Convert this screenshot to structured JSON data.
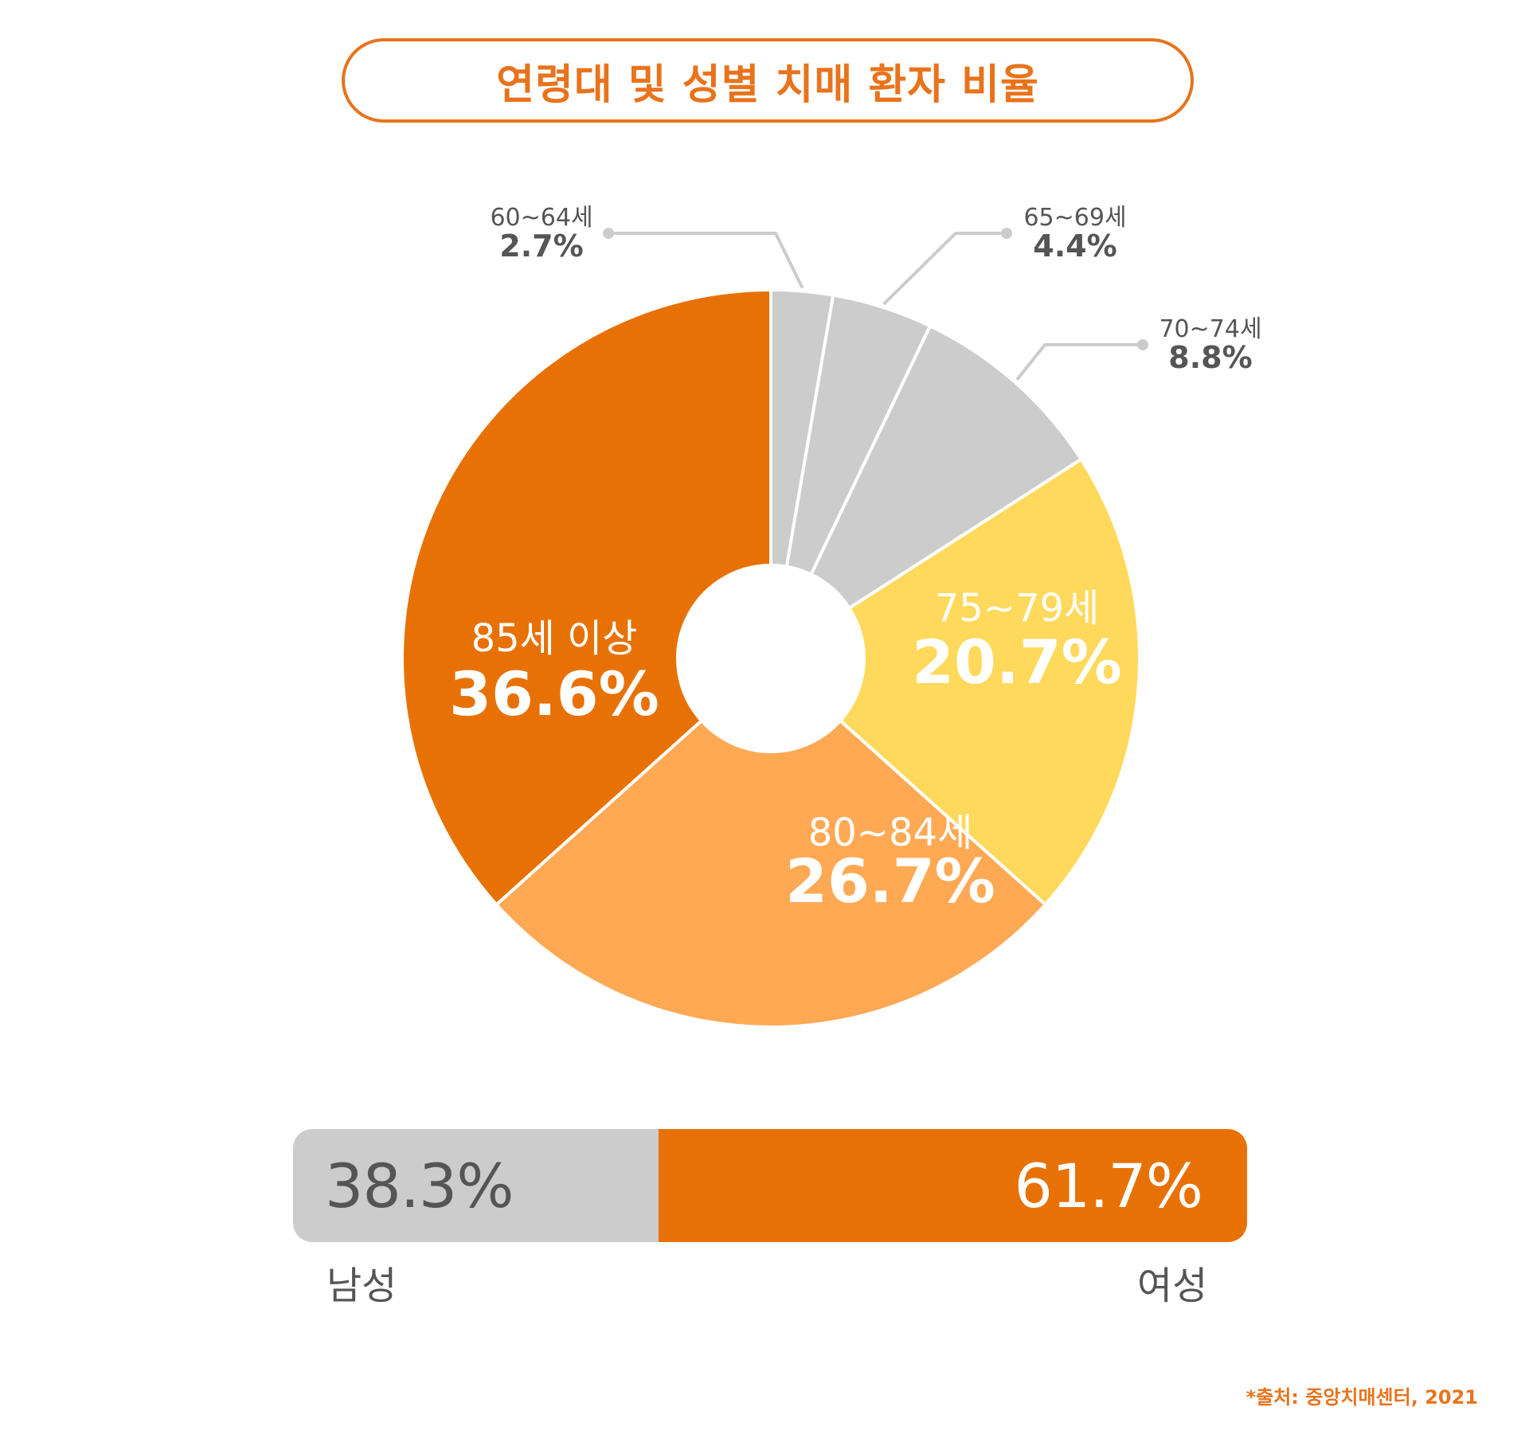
{
  "chart_data": {
    "type": "pie",
    "title": "연령대 및 성별 치매 환자 비율",
    "categories": [
      "60~64세",
      "65~69세",
      "70~74세",
      "75~79세",
      "80~84세",
      "85세 이상"
    ],
    "values": [
      2.7,
      4.4,
      8.8,
      20.7,
      26.7,
      36.6
    ],
    "value_labels": [
      "2.7%",
      "4.4%",
      "8.8%",
      "20.7%",
      "26.7%",
      "36.6%"
    ],
    "colors": [
      "#CCCCCC",
      "#CCCCCC",
      "#CCCCCC",
      "#FFD95C",
      "#FFA955",
      "#E87106"
    ],
    "inner_hole": true,
    "gender": {
      "male": {
        "label": "남성",
        "value": 38.3,
        "value_label": "38.3%",
        "color": "#CCCCCC"
      },
      "female": {
        "label": "여성",
        "value": 61.7,
        "value_label": "61.7%",
        "color": "#E87106"
      }
    },
    "source": "*출처: 중앙치매센터, 2021"
  }
}
